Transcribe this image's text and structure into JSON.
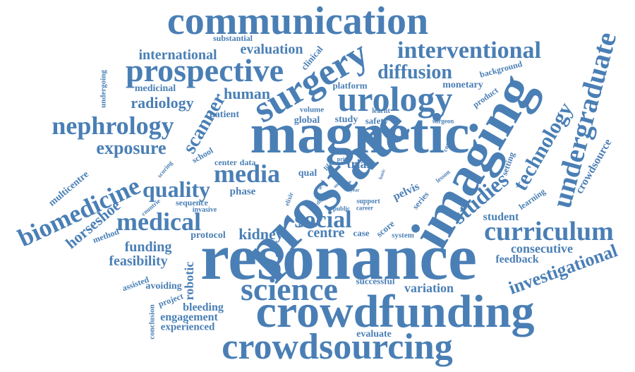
{
  "color": "#4A7FB5",
  "words": {
    "communication": "communication",
    "resonance": "resonance",
    "magnetic": "magnetic",
    "prostate": "prostate",
    "crowdfunding": "crowdfunding",
    "crowdsourcing": "crowdsourcing",
    "imaging": "imaging",
    "surgery": "surgery",
    "urology": "urology",
    "prospective": "prospective",
    "interventional": "interventional",
    "undergraduate": "undergraduate",
    "science": "science",
    "curriculum": "curriculum",
    "biomedicine": "biomedicine",
    "nephrology": "nephrology",
    "medical": "medical",
    "media": "media",
    "social": "social",
    "studies": "studies",
    "technology": "technology",
    "diffusion": "diffusion",
    "evaluation": "evaluation",
    "international": "international",
    "radiology": "radiology",
    "exposure": "exposure",
    "quality": "quality",
    "scanner": "scanner",
    "human": "human",
    "kidney": "kidney",
    "centre": "centre",
    "investigational": "investigational",
    "horseshoe": "horseshoe",
    "feasibility": "feasibility",
    "funding": "funding",
    "consecutive": "consecutive",
    "feedback": "feedback",
    "robotic": "robotic",
    "variation": "variation",
    "bleeding": "bleeding",
    "engagement": "engagement",
    "experienced": "experienced",
    "avoiding": "avoiding",
    "evaluate": "evaluate",
    "successful": "successful",
    "crowdsource": "crowdsource",
    "student": "student",
    "multicentre": "multicentre",
    "medicinal": "medicinal",
    "substantial": "substantial",
    "undergoing": "undergoing",
    "clinical": "clinical",
    "platform": "platform",
    "monetary": "monetary",
    "background": "background",
    "product": "product",
    "patient": "patient",
    "volume": "volume",
    "global": "global",
    "study": "study",
    "safety": "safety",
    "learnt": "learnt",
    "surgeon": "surgeon",
    "school": "school",
    "center": "center",
    "data": "data",
    "qual": "qual",
    "trial": "trial",
    "phase": "phase",
    "sequence": "sequence",
    "invasive": "invasive",
    "protocol": "protocol",
    "male": "male",
    "pelvis": "pelvis",
    "series": "series",
    "case": "case",
    "score": "score",
    "system": "system",
    "method": "method",
    "assisted": "assisted",
    "project": "project",
    "conclusion": "conclusion",
    "career": "career",
    "support": "support",
    "public": "public",
    "learning": "learning",
    "setting": "setting",
    "lesson": "lesson",
    "contrast": "contrast",
    "countrie": "countrie",
    "scoring": "scoring",
    "life": "life",
    "prime": "prime",
    "elixir": "elixir",
    "dual": "dual",
    "risk": "risk",
    "year": "year",
    "level": "level",
    "any": "any",
    "basic": "basic"
  }
}
